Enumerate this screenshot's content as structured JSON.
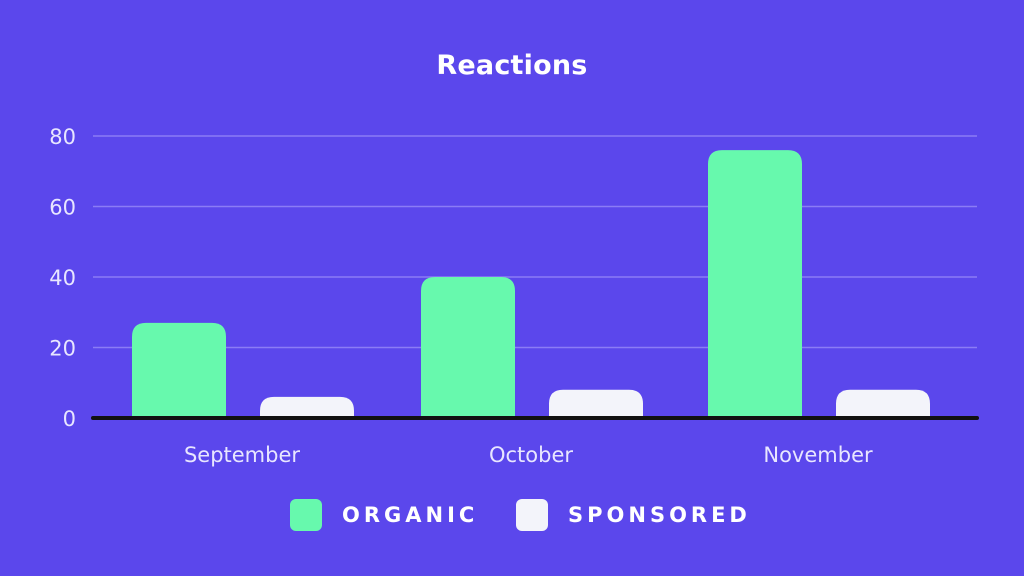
{
  "chart_data": {
    "type": "bar",
    "title": "Reactions",
    "xlabel": "",
    "ylabel": "",
    "categories": [
      "September",
      "October",
      "November"
    ],
    "series": [
      {
        "name": "ORGANIC",
        "values": [
          27,
          40,
          76
        ],
        "color": "#67f9ad"
      },
      {
        "name": "SPONSORED",
        "values": [
          6,
          8,
          8
        ],
        "color": "#f3f4fa"
      }
    ],
    "ylim": [
      0,
      80
    ],
    "yticks": [
      "0",
      "20",
      "40",
      "60",
      "80"
    ],
    "grid": true,
    "legend_position": "bottom",
    "colors": {
      "background": "#5b47ec",
      "gridline": "#8b7cf5",
      "axis": "#111111",
      "tick_text": "#e8e6ff",
      "title_text": "#ffffff"
    }
  }
}
